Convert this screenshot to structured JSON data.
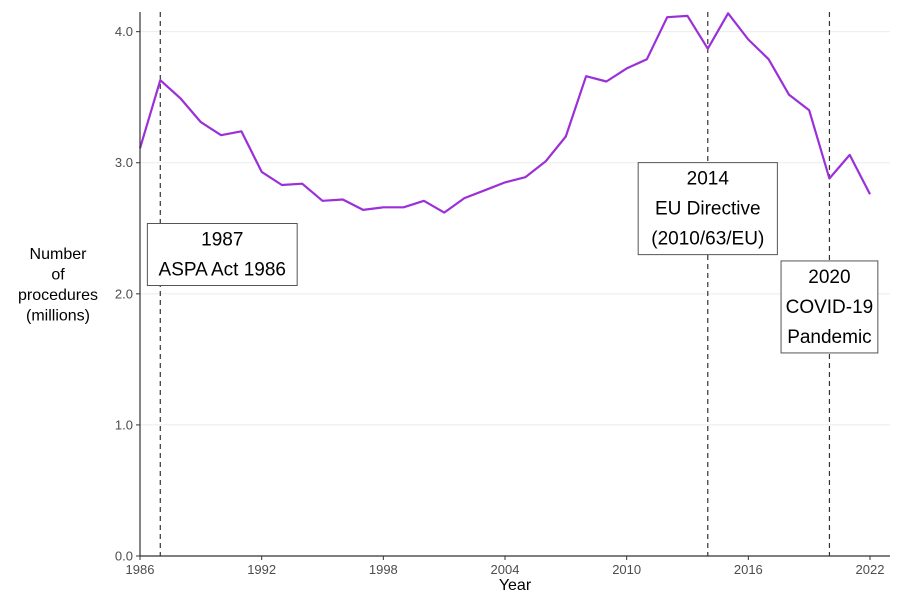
{
  "chart_data": {
    "type": "line",
    "xlabel": "Year",
    "ylabel": [
      "Number",
      "of",
      "procedures",
      "(millions)"
    ],
    "xlim": [
      1986,
      2022
    ],
    "ylim": [
      0,
      4.15
    ],
    "xticks": [
      1986,
      1992,
      1998,
      2004,
      2010,
      2016,
      2022
    ],
    "yticks": [
      0,
      1,
      2,
      3,
      4
    ],
    "ytick_labels": [
      "0.0",
      "1.0",
      "2.0",
      "3.0",
      "4.0"
    ],
    "grid": "horizontal",
    "series": [
      {
        "color": "#9B30D9",
        "x": [
          1986,
          1987,
          1988,
          1989,
          1990,
          1991,
          1992,
          1993,
          1994,
          1995,
          1996,
          1997,
          1998,
          1999,
          2000,
          2001,
          2002,
          2003,
          2004,
          2005,
          2006,
          2007,
          2008,
          2009,
          2010,
          2011,
          2012,
          2013,
          2014,
          2015,
          2016,
          2017,
          2018,
          2019,
          2020,
          2021,
          2022
        ],
        "y": [
          3.11,
          3.63,
          3.49,
          3.31,
          3.21,
          3.24,
          2.93,
          2.83,
          2.84,
          2.71,
          2.72,
          2.64,
          2.66,
          2.66,
          2.71,
          2.62,
          2.73,
          2.79,
          2.85,
          2.89,
          3.01,
          3.2,
          3.66,
          3.62,
          3.72,
          3.79,
          4.11,
          4.12,
          3.87,
          4.14,
          3.94,
          3.79,
          3.52,
          3.4,
          2.88,
          3.06,
          2.76
        ]
      }
    ],
    "annotations": [
      {
        "x": 1987,
        "lines": [
          "1987",
          "ASPA Act 1986"
        ],
        "label_y": 2.3
      },
      {
        "x": 2014,
        "lines": [
          "2014",
          "EU Directive",
          "(2010/63/EU)"
        ],
        "label_y": 2.65
      },
      {
        "x": 2020,
        "lines": [
          "2020",
          "COVID-19",
          "Pandemic"
        ],
        "label_y": 1.9
      }
    ]
  }
}
